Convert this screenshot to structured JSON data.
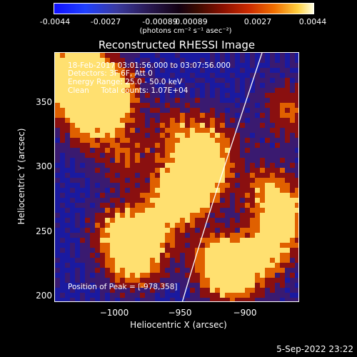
{
  "colorbar": {
    "ticks": [
      "-0.0044",
      "-0.0027",
      "-0.00089",
      "0.00089",
      "0.0027",
      "0.0044"
    ],
    "unit_label": "(photons cm⁻² s⁻¹ asec⁻²)"
  },
  "title": "Reconstructed RHESSI Image",
  "info": {
    "line1": "18-Feb-2017 03:01:56.000 to 03:07:56.000",
    "line2": "Detectors: 3F 6F, Att 0",
    "line3": "Energy Range: 25.0 - 50.0 keV",
    "line4": "Clean     Total counts: 1.07E+04"
  },
  "peak_text": "Position of Peak = [-978,358]",
  "axes": {
    "xlabel": "Heliocentric X (arcsec)",
    "ylabel": "Heliocentric Y (arcsec)",
    "xticks": [
      "−1000",
      "−950",
      "−900"
    ],
    "yticks": [
      "350",
      "300",
      "250",
      "200"
    ]
  },
  "timestamp": "5-Sep-2022 23:22",
  "image_colors": {
    "negative": "#1a1aa0",
    "low": "#3a1a70",
    "mid": "#8a1010",
    "high": "#e06000",
    "peak": "#ffe070"
  }
}
